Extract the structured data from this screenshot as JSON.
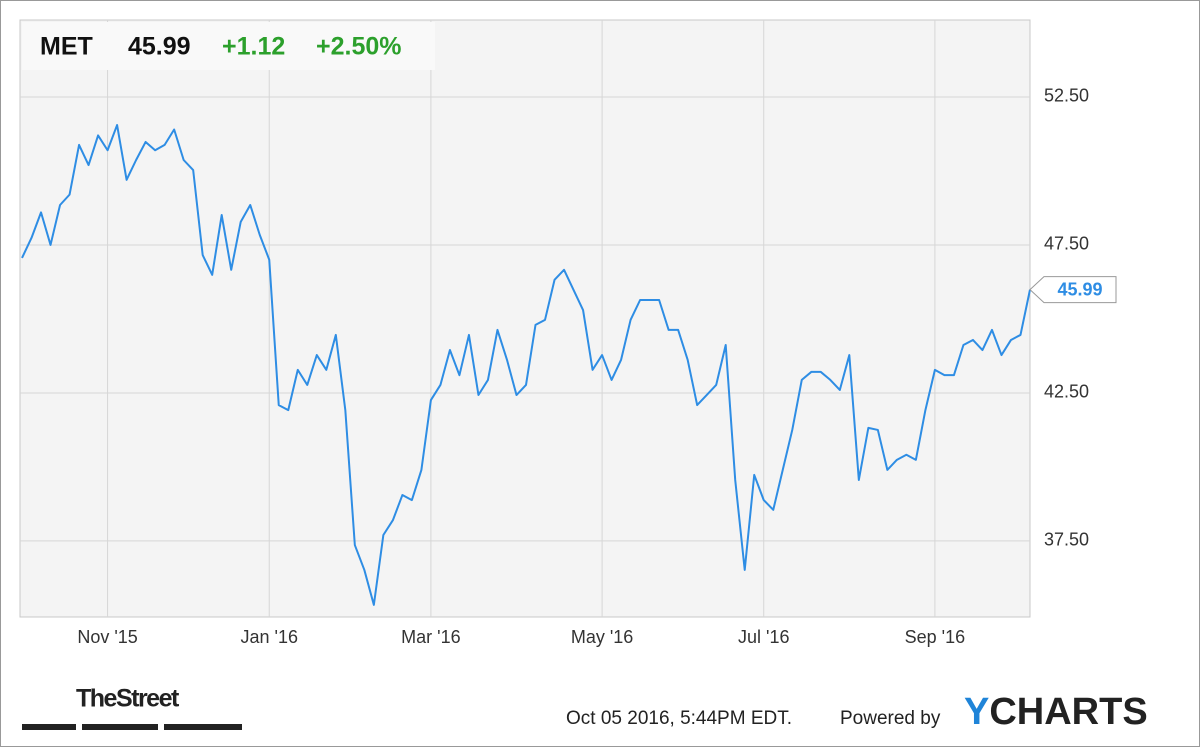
{
  "chart_data": {
    "type": "line",
    "header": {
      "ticker": "MET",
      "price": "45.99",
      "change": "+1.12",
      "change_percent": "+2.50%"
    },
    "series": [
      {
        "name": "MET",
        "color": "#2e8de4",
        "values": [
          47.06,
          47.74,
          48.6,
          47.5,
          48.85,
          49.2,
          50.88,
          50.2,
          51.2,
          50.7,
          51.55,
          49.7,
          50.37,
          50.98,
          50.7,
          50.88,
          51.4,
          50.37,
          50.03,
          47.16,
          46.49,
          48.51,
          46.66,
          48.28,
          48.85,
          47.84,
          47.0,
          42.09,
          41.92,
          43.28,
          42.77,
          43.78,
          43.28,
          44.46,
          41.92,
          37.36,
          36.52,
          35.34,
          37.7,
          38.2,
          39.05,
          38.88,
          39.9,
          42.26,
          42.77,
          43.95,
          43.1,
          44.46,
          42.43,
          42.94,
          44.63,
          43.62,
          42.43,
          42.77,
          44.8,
          44.97,
          46.32,
          46.66,
          45.98,
          45.3,
          43.28,
          43.78,
          42.94,
          43.62,
          44.97,
          45.64,
          45.64,
          45.64,
          44.63,
          44.63,
          43.62,
          42.09,
          42.43,
          42.77,
          44.12,
          39.56,
          36.52,
          39.73,
          38.88,
          38.55,
          39.9,
          41.25,
          42.94,
          43.21,
          43.21,
          42.94,
          42.6,
          43.78,
          39.56,
          41.32,
          41.25,
          39.9,
          40.24,
          40.41,
          40.24,
          41.92,
          43.28,
          43.1,
          43.1,
          44.12,
          44.29,
          43.95,
          44.63,
          43.78,
          44.29,
          44.46,
          45.99
        ]
      }
    ],
    "xlim": [
      0,
      106
    ],
    "xticks": [
      {
        "value": 9,
        "label": "Nov '15"
      },
      {
        "value": 26,
        "label": "Jan '16"
      },
      {
        "value": 43,
        "label": "Mar '16"
      },
      {
        "value": 61,
        "label": "May '16"
      },
      {
        "value": 78,
        "label": "Jul '16"
      },
      {
        "value": 96,
        "label": "Sep '16"
      }
    ],
    "ylim": [
      34.93,
      55.1
    ],
    "yticks": [
      {
        "value": 37.5,
        "label": "37.50"
      },
      {
        "value": 42.5,
        "label": "42.50"
      },
      {
        "value": 47.5,
        "label": "47.50"
      },
      {
        "value": 52.5,
        "label": "52.50"
      }
    ],
    "grid": true,
    "footer": {
      "timestamp": "Oct 05 2016, 5:44PM EDT.",
      "powered_by": "Powered by",
      "logo": [
        "Y",
        "CHARTS"
      ],
      "source": "TheStreet"
    }
  }
}
